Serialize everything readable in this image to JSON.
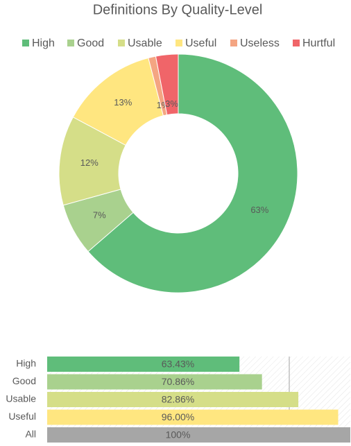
{
  "chart_data": [
    {
      "type": "donut",
      "title": "Definitions By Quality-Level",
      "categories": [
        "High",
        "Good",
        "Usable",
        "Useful",
        "Useless",
        "Hurtful"
      ],
      "values": [
        63,
        7,
        12,
        13,
        1,
        3
      ],
      "value_labels": [
        "63%",
        "7%",
        "12%",
        "13%",
        "1%",
        "3%"
      ],
      "colors": [
        "#5fbd7a",
        "#a9d18e",
        "#d5de88",
        "#ffe680",
        "#f4a582",
        "#f06569"
      ],
      "legend": "top"
    },
    {
      "type": "barh",
      "categories": [
        "High",
        "Good",
        "Usable",
        "Useful",
        "All"
      ],
      "values": [
        63.43,
        70.86,
        82.86,
        96.0,
        100
      ],
      "value_labels": [
        "63.43%",
        "70.86%",
        "82.86%",
        "96.00%",
        "100%"
      ],
      "colors": [
        "#5fbd7a",
        "#a9d18e",
        "#d5de88",
        "#ffe680",
        "#a6a6a6"
      ],
      "xlim": [
        0,
        100
      ]
    }
  ]
}
